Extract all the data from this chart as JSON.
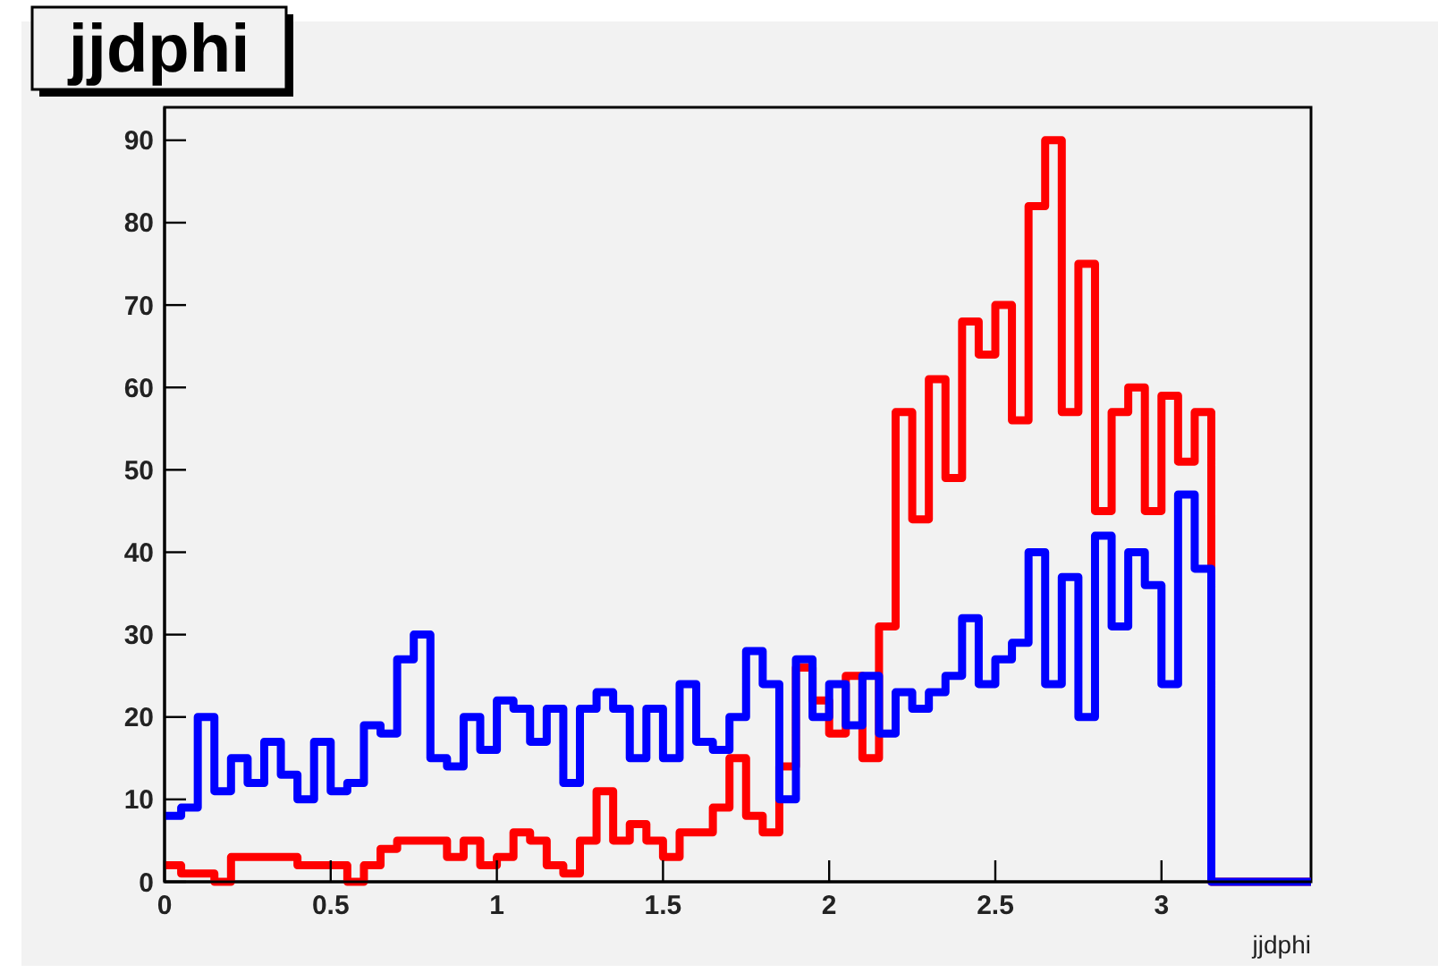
{
  "chart_data": {
    "type": "histogram",
    "title": "jjdphi",
    "xlabel": "jjdphi",
    "bins": [
      0,
      0.05,
      0.1,
      0.15,
      0.2,
      0.25,
      0.3,
      0.35,
      0.4,
      0.45,
      0.5,
      0.55,
      0.6,
      0.65,
      0.7,
      0.75,
      0.8,
      0.85,
      0.9,
      0.95,
      1,
      1.05,
      1.1,
      1.15,
      1.2,
      1.25,
      1.3,
      1.35,
      1.4,
      1.45,
      1.5,
      1.55,
      1.6,
      1.65,
      1.7,
      1.75,
      1.8,
      1.85,
      1.9,
      1.95,
      2,
      2.05,
      2.1,
      2.15,
      2.2,
      2.25,
      2.3,
      2.35,
      2.4,
      2.45,
      2.5,
      2.55,
      2.6,
      2.65,
      2.7,
      2.75,
      2.8,
      2.85,
      2.9,
      2.95,
      3,
      3.05,
      3.1,
      3.15,
      3.2,
      3.25,
      3.3,
      3.35,
      3.4,
      3.45
    ],
    "series": [
      {
        "color": "#ff0000",
        "values": [
          2,
          1,
          1,
          0,
          3,
          3,
          3,
          3,
          2,
          2,
          2,
          0,
          2,
          4,
          5,
          5,
          5,
          3,
          5,
          2,
          3,
          6,
          5,
          2,
          1,
          5,
          11,
          5,
          7,
          5,
          3,
          6,
          6,
          9,
          15,
          8,
          6,
          14,
          26,
          22,
          18,
          25,
          15,
          31,
          57,
          44,
          61,
          49,
          68,
          64,
          70,
          56,
          82,
          90,
          57,
          75,
          45,
          57,
          60,
          45,
          59,
          51,
          57,
          0,
          0,
          0,
          0,
          0,
          0
        ]
      },
      {
        "color": "#0000ff",
        "values": [
          8,
          9,
          20,
          11,
          15,
          12,
          17,
          13,
          10,
          17,
          11,
          12,
          19,
          18,
          27,
          30,
          15,
          14,
          20,
          16,
          22,
          21,
          17,
          21,
          12,
          21,
          23,
          21,
          15,
          21,
          15,
          24,
          17,
          16,
          20,
          28,
          24,
          10,
          27,
          20,
          24,
          19,
          25,
          18,
          23,
          21,
          23,
          25,
          32,
          24,
          27,
          29,
          40,
          24,
          37,
          20,
          42,
          31,
          40,
          36,
          24,
          47,
          38,
          0,
          0,
          0,
          0,
          0,
          0
        ]
      }
    ],
    "xlim": [
      0,
      3.45
    ],
    "xticks": [
      0,
      0.5,
      1,
      1.5,
      2,
      2.5,
      3
    ],
    "ylim": [
      0,
      94
    ],
    "yticks": [
      0,
      10,
      20,
      30,
      40,
      50,
      60,
      70,
      80,
      90
    ],
    "grid": false
  }
}
